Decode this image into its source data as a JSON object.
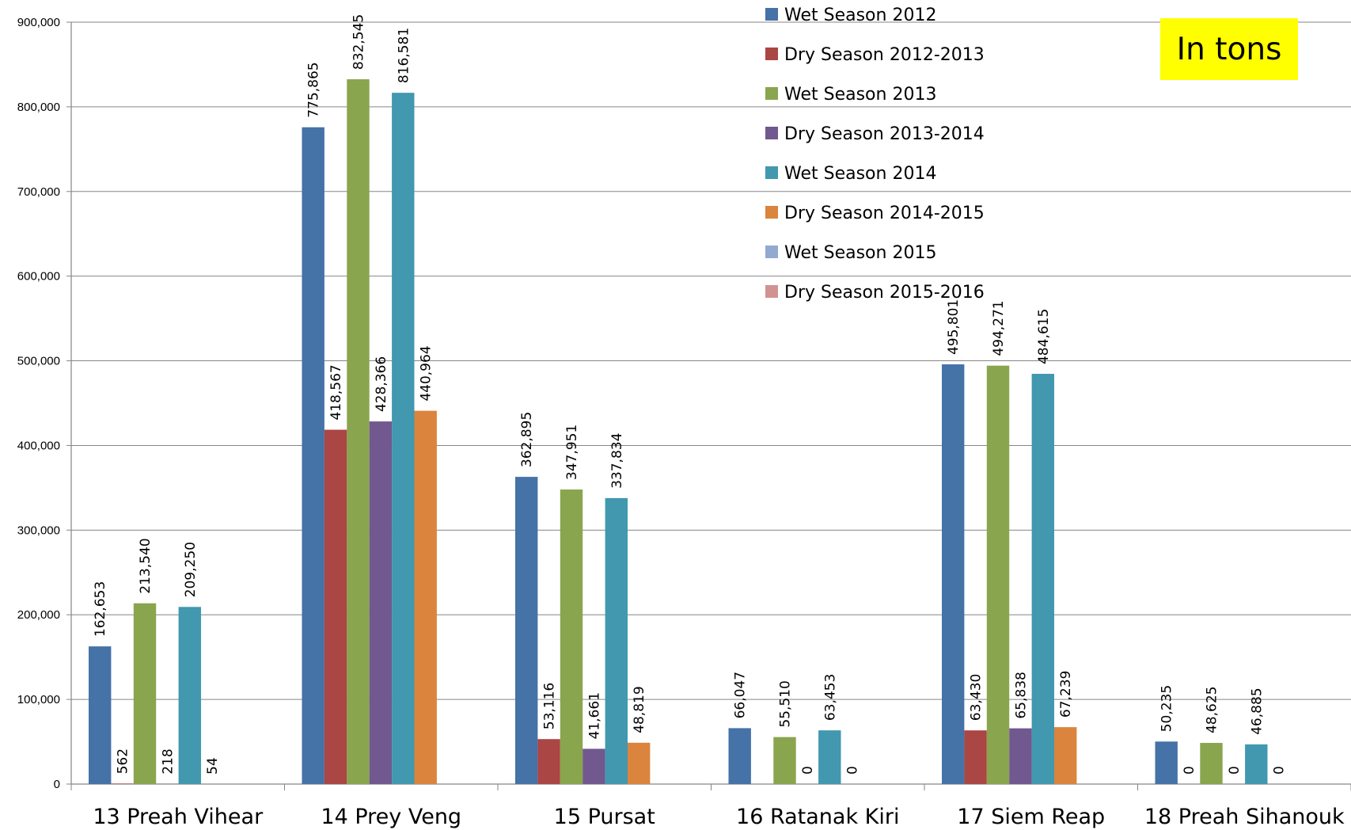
{
  "chart_data": {
    "type": "bar",
    "title": "",
    "xlabel": "",
    "ylabel": "",
    "annotation": "In tons",
    "ylim": [
      0,
      900000
    ],
    "yticks": [
      0,
      100000,
      200000,
      300000,
      400000,
      500000,
      600000,
      700000,
      800000,
      900000
    ],
    "ytick_labels": [
      "0",
      "100,000",
      "200,000",
      "300,000",
      "400,000",
      "500,000",
      "600,000",
      "700,000",
      "800,000",
      "900,000"
    ],
    "grid": true,
    "legend_position": "top-center",
    "categories": [
      "13 Preah Vihear",
      "14 Prey Veng",
      "15 Pursat",
      "16 Ratanak Kiri",
      "17 Siem Reap",
      "18 Preah Sihanouk"
    ],
    "series": [
      {
        "name": "Wet Season 2012",
        "color": "#4572a7",
        "values": [
          162653,
          775865,
          362895,
          66047,
          495801,
          50235
        ],
        "labels": [
          "162,653",
          "775,865",
          "362,895",
          "66,047",
          "495,801",
          "50,235"
        ]
      },
      {
        "name": "Dry Season 2012-2013",
        "color": "#aa4643",
        "values": [
          562,
          418567,
          53116,
          null,
          63430,
          0
        ],
        "labels": [
          "562",
          "418,567",
          "53,116",
          "",
          "63,430",
          "0"
        ]
      },
      {
        "name": "Wet Season 2013",
        "color": "#89a54e",
        "values": [
          213540,
          832545,
          347951,
          55510,
          494271,
          48625
        ],
        "labels": [
          "213,540",
          "832,545",
          "347,951",
          "55,510",
          "494,271",
          "48,625"
        ]
      },
      {
        "name": "Dry Season 2013-2014",
        "color": "#71588f",
        "values": [
          218,
          428366,
          41661,
          0,
          65838,
          0
        ],
        "labels": [
          "218",
          "428,366",
          "41,661",
          "0",
          "65,838",
          "0"
        ]
      },
      {
        "name": "Wet Season 2014",
        "color": "#4198af",
        "values": [
          209250,
          816581,
          337834,
          63453,
          484615,
          46885
        ],
        "labels": [
          "209,250",
          "816,581",
          "337,834",
          "63,453",
          "484,615",
          "46,885"
        ]
      },
      {
        "name": "Dry Season 2014-2015",
        "color": "#db843d",
        "values": [
          54,
          440964,
          48819,
          0,
          67239,
          0
        ],
        "labels": [
          "54",
          "440,964",
          "48,819",
          "0",
          "67,239",
          "0"
        ]
      },
      {
        "name": "Wet Season 2015",
        "color": "#93a9cf",
        "values": [
          null,
          null,
          null,
          null,
          null,
          null
        ],
        "labels": [
          "",
          "",
          "",
          "",
          "",
          ""
        ]
      },
      {
        "name": "Dry Season 2015-2016",
        "color": "#d19392",
        "values": [
          null,
          null,
          null,
          null,
          null,
          null
        ],
        "labels": [
          "",
          "",
          "",
          "",
          "",
          ""
        ]
      }
    ]
  }
}
